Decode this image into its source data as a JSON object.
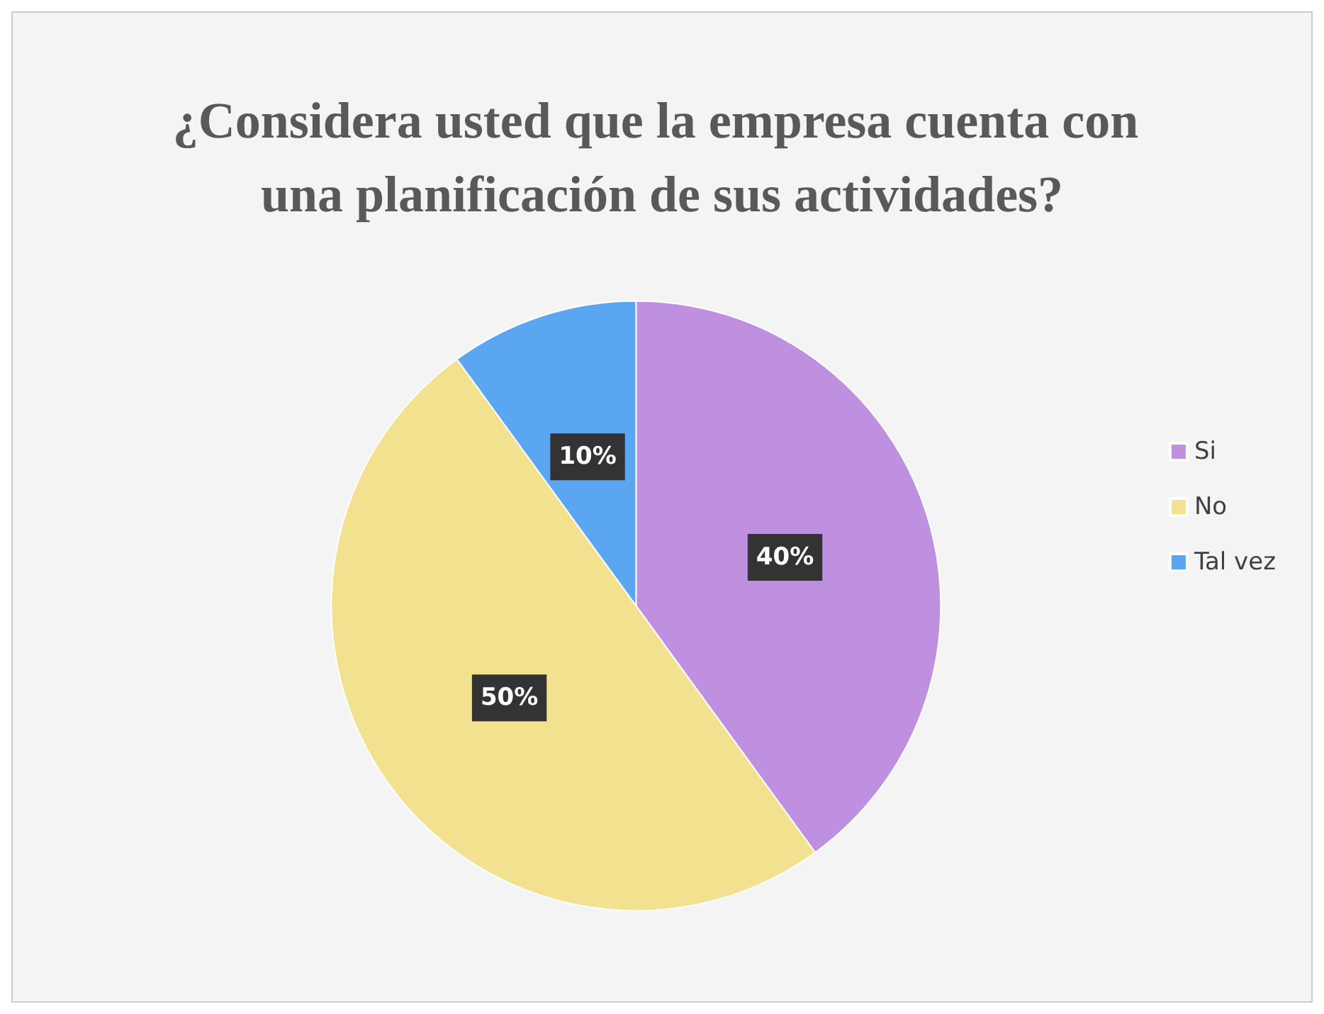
{
  "chart_data": {
    "type": "pie",
    "title": "¿Considera usted que la empresa cuenta con una planificación de sus actividades?",
    "categories": [
      "Si",
      "No",
      "Tal vez"
    ],
    "values": [
      40,
      50,
      10
    ],
    "colors": [
      "#bf8fe0",
      "#f2e28f",
      "#5aa6f0"
    ],
    "value_labels": [
      "40%",
      "50%",
      "10%"
    ],
    "legend": "right"
  }
}
